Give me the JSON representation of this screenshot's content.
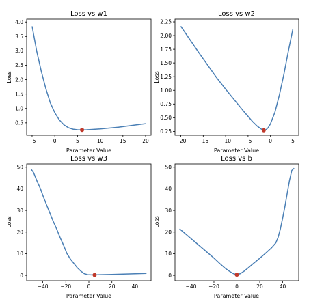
{
  "colors": {
    "line": "#4a7fb5",
    "marker": "#c0392b"
  },
  "chart_data": [
    {
      "type": "line",
      "title": "Loss vs w1",
      "xlabel": "Parameter Value",
      "ylabel": "Loss",
      "xlim": [
        -6.2,
        21.2
      ],
      "ylim": [
        0.07,
        4.1
      ],
      "xticks": [
        -5,
        0,
        5,
        10,
        15,
        20
      ],
      "yticks": [
        0.5,
        1.0,
        1.5,
        2.0,
        2.5,
        3.0,
        3.5,
        4.0
      ],
      "xtick_labels": [
        "−5",
        "0",
        "5",
        "10",
        "15",
        "20"
      ],
      "ytick_labels": [
        "0.5",
        "1.0",
        "1.5",
        "2.0",
        "2.5",
        "3.0",
        "3.5",
        "4.0"
      ],
      "x": [
        -5,
        -4,
        -3,
        -2,
        -1,
        0,
        1,
        2,
        3,
        4,
        5,
        6,
        7,
        8,
        10,
        12,
        14,
        16,
        18,
        20
      ],
      "y": [
        3.85,
        3.0,
        2.3,
        1.7,
        1.2,
        0.85,
        0.6,
        0.43,
        0.33,
        0.28,
        0.26,
        0.255,
        0.26,
        0.27,
        0.29,
        0.32,
        0.35,
        0.39,
        0.43,
        0.47
      ],
      "min_point": {
        "x": 6,
        "y": 0.255
      }
    },
    {
      "type": "line",
      "title": "Loss vs w2",
      "xlabel": "Parameter Value",
      "ylabel": "Loss",
      "xlim": [
        -21.3,
        6.3
      ],
      "ylim": [
        0.18,
        2.3
      ],
      "xticks": [
        -20,
        -15,
        -10,
        -5,
        0,
        5
      ],
      "yticks": [
        0.25,
        0.5,
        0.75,
        1.0,
        1.25,
        1.5,
        1.75,
        2.0,
        2.25
      ],
      "xtick_labels": [
        "−20",
        "−15",
        "−10",
        "−5",
        "0",
        "5"
      ],
      "ytick_labels": [
        "0.25",
        "0.50",
        "0.75",
        "1.00",
        "1.25",
        "1.50",
        "1.75",
        "2.00",
        "2.25"
      ],
      "x": [
        -20,
        -18,
        -16,
        -14,
        -12,
        -10,
        -8,
        -6,
        -4,
        -3,
        -2,
        -1.5,
        -1,
        -0.5,
        0,
        1,
        2,
        3,
        4,
        5
      ],
      "y": [
        2.17,
        1.93,
        1.69,
        1.46,
        1.23,
        1.02,
        0.82,
        0.62,
        0.43,
        0.35,
        0.29,
        0.27,
        0.28,
        0.32,
        0.39,
        0.6,
        0.92,
        1.3,
        1.72,
        2.12
      ],
      "min_point": {
        "x": -1.5,
        "y": 0.27
      }
    },
    {
      "type": "line",
      "title": "Loss vs w3",
      "xlabel": "Parameter Value",
      "ylabel": "Loss",
      "xlim": [
        -54,
        54
      ],
      "ylim": [
        -2.5,
        51.5
      ],
      "xticks": [
        -40,
        -20,
        0,
        20,
        40
      ],
      "yticks": [
        0,
        10,
        20,
        30,
        40,
        50
      ],
      "xtick_labels": [
        "−40",
        "−20",
        "0",
        "20",
        "40"
      ],
      "ytick_labels": [
        "0",
        "10",
        "20",
        "30",
        "40",
        "50"
      ],
      "x": [
        -50,
        -48,
        -45,
        -42,
        -40,
        -37,
        -34,
        -31,
        -28,
        -25,
        -22,
        -19,
        -16,
        -13,
        -10,
        -7,
        -4,
        -1,
        2,
        5,
        10,
        20,
        30,
        40,
        50
      ],
      "y": [
        49,
        47.5,
        43.5,
        40,
        37,
        33,
        29,
        25,
        21.5,
        17.5,
        14,
        10,
        7.5,
        5.5,
        3.5,
        2,
        0.8,
        0.3,
        0.2,
        0.2,
        0.3,
        0.45,
        0.6,
        0.75,
        0.9
      ],
      "min_point": {
        "x": 5,
        "y": 0.2
      }
    },
    {
      "type": "line",
      "title": "Loss vs b",
      "xlabel": "Parameter Value",
      "ylabel": "Loss",
      "xlim": [
        -54,
        54
      ],
      "ylim": [
        -2.5,
        51.5
      ],
      "xticks": [
        -40,
        -20,
        0,
        20,
        40
      ],
      "yticks": [
        0,
        10,
        20,
        30,
        40,
        50
      ],
      "xtick_labels": [
        "−40",
        "−20",
        "0",
        "20",
        "40"
      ],
      "ytick_labels": [
        "0",
        "10",
        "20",
        "30",
        "40",
        "50"
      ],
      "x": [
        -50,
        -40,
        -30,
        -20,
        -15,
        -10,
        -6,
        -3,
        0,
        3,
        6,
        10,
        15,
        20,
        25,
        30,
        34,
        36,
        38,
        40,
        42,
        44,
        46,
        48,
        50
      ],
      "y": [
        21.5,
        17,
        12.5,
        8,
        5.5,
        3.2,
        1.7,
        0.8,
        0.3,
        0.8,
        1.8,
        3.5,
        5.7,
        7.9,
        10.2,
        12.6,
        15,
        17.5,
        21.5,
        26.5,
        32,
        38,
        44,
        48.5,
        49.5
      ],
      "min_point": {
        "x": 0,
        "y": 0.3
      }
    }
  ]
}
